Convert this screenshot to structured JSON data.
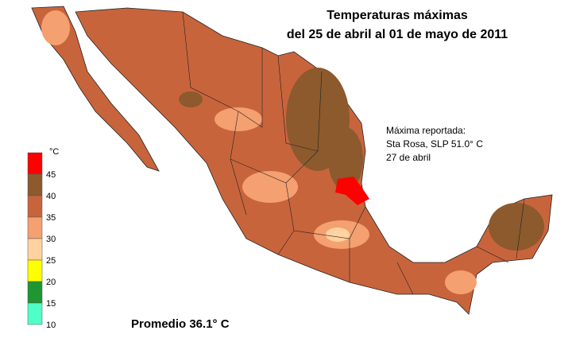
{
  "title": [
    "Temperaturas máximas",
    "del 25 de abril al 01 de mayo de 2011"
  ],
  "annotation": [
    "Máxima reportada:",
    "Sta Rosa, SLP  51.0° C",
    "27 de abril"
  ],
  "legend": {
    "unit": "°C",
    "colors": [
      "#ff0000",
      "#8c5a2c",
      "#c8643c",
      "#f4a070",
      "#ffd2a0",
      "#ffff00",
      "#1e9632",
      "#50ffc8"
    ],
    "ticks": [
      45,
      40,
      35,
      30,
      25,
      20,
      15,
      10
    ]
  },
  "average": "Promedio 36.1° C"
}
